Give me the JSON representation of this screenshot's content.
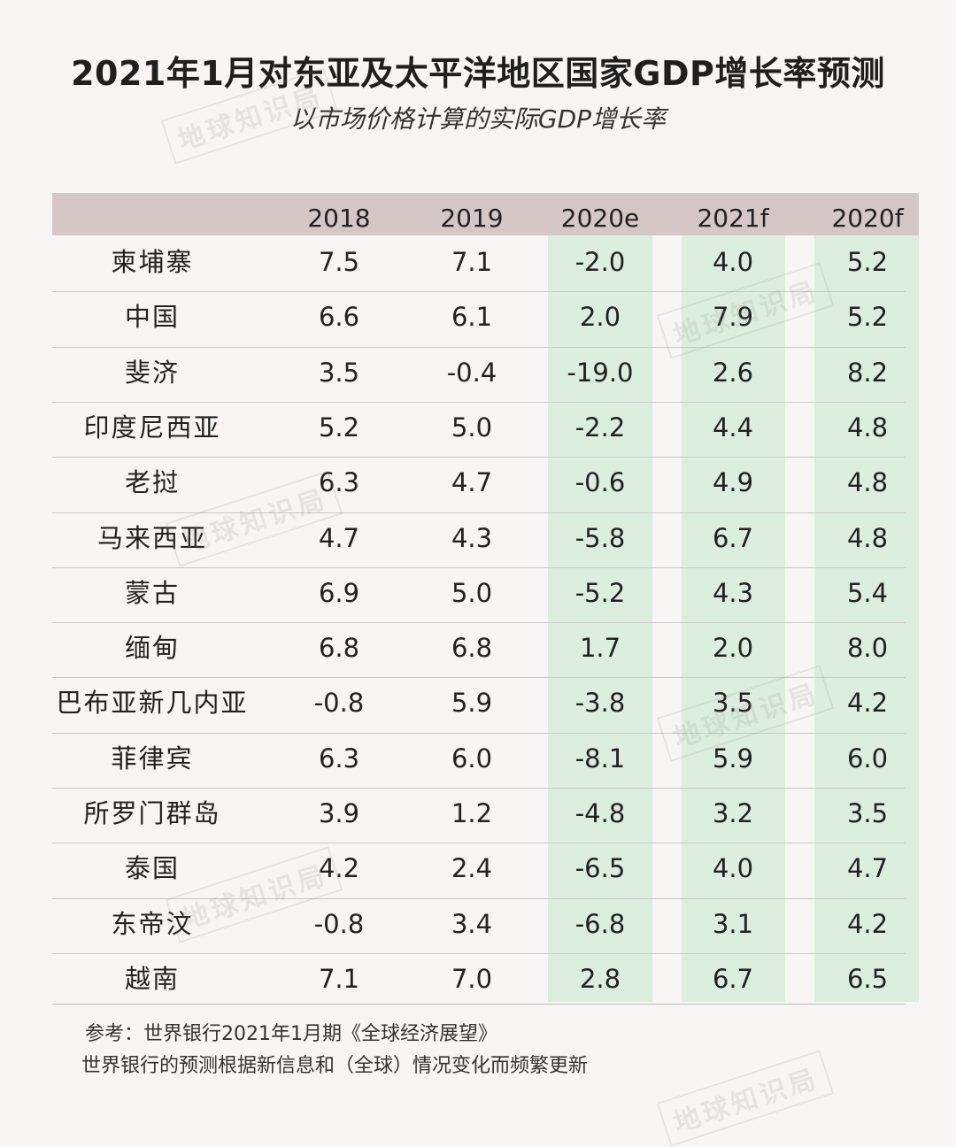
{
  "title": "2021年1月对东亚及太平洋地区国家GDP增长率预测",
  "subtitle": "以市场价格计算的实际GDP增长率",
  "watermark": "地球知识局",
  "colors": {
    "header_band": "#d6c7c7",
    "highlight_green": "#dceede",
    "background": "#f7f6f4"
  },
  "table": {
    "columns": [
      "2018",
      "2019",
      "2020e",
      "2021f",
      "2020f"
    ],
    "rows": [
      {
        "name": "柬埔寨",
        "values": [
          "7.5",
          "7.1",
          "-2.0",
          "4.0",
          "5.2"
        ]
      },
      {
        "name": "中国",
        "values": [
          "6.6",
          "6.1",
          "2.0",
          "7.9",
          "5.2"
        ]
      },
      {
        "name": "斐济",
        "values": [
          "3.5",
          "-0.4",
          "-19.0",
          "2.6",
          "8.2"
        ]
      },
      {
        "name": "印度尼西亚",
        "values": [
          "5.2",
          "5.0",
          "-2.2",
          "4.4",
          "4.8"
        ]
      },
      {
        "name": "老挝",
        "values": [
          "6.3",
          "4.7",
          "-0.6",
          "4.9",
          "4.8"
        ]
      },
      {
        "name": "马来西亚",
        "values": [
          "4.7",
          "4.3",
          "-5.8",
          "6.7",
          "4.8"
        ]
      },
      {
        "name": "蒙古",
        "values": [
          "6.9",
          "5.0",
          "-5.2",
          "4.3",
          "5.4"
        ]
      },
      {
        "name": "缅甸",
        "values": [
          "6.8",
          "6.8",
          "1.7",
          "2.0",
          "8.0"
        ]
      },
      {
        "name": "巴布亚新几内亚",
        "values": [
          "-0.8",
          "5.9",
          "-3.8",
          "3.5",
          "4.2"
        ]
      },
      {
        "name": "菲律宾",
        "values": [
          "6.3",
          "6.0",
          "-8.1",
          "5.9",
          "6.0"
        ]
      },
      {
        "name": "所罗门群岛",
        "values": [
          "3.9",
          "1.2",
          "-4.8",
          "3.2",
          "3.5"
        ]
      },
      {
        "name": "泰国",
        "values": [
          "4.2",
          "2.4",
          "-6.5",
          "4.0",
          "4.7"
        ]
      },
      {
        "name": "东帝汶",
        "values": [
          "-0.8",
          "3.4",
          "-6.8",
          "3.1",
          "4.2"
        ]
      },
      {
        "name": "越南",
        "values": [
          "7.1",
          "7.0",
          "2.8",
          "6.7",
          "6.5"
        ]
      }
    ]
  },
  "notes": {
    "source": "参考：世界银行2021年1月期《全球经济展望》",
    "disclaimer": "世界银行的预测根据新信息和（全球）情况变化而频繁更新"
  }
}
